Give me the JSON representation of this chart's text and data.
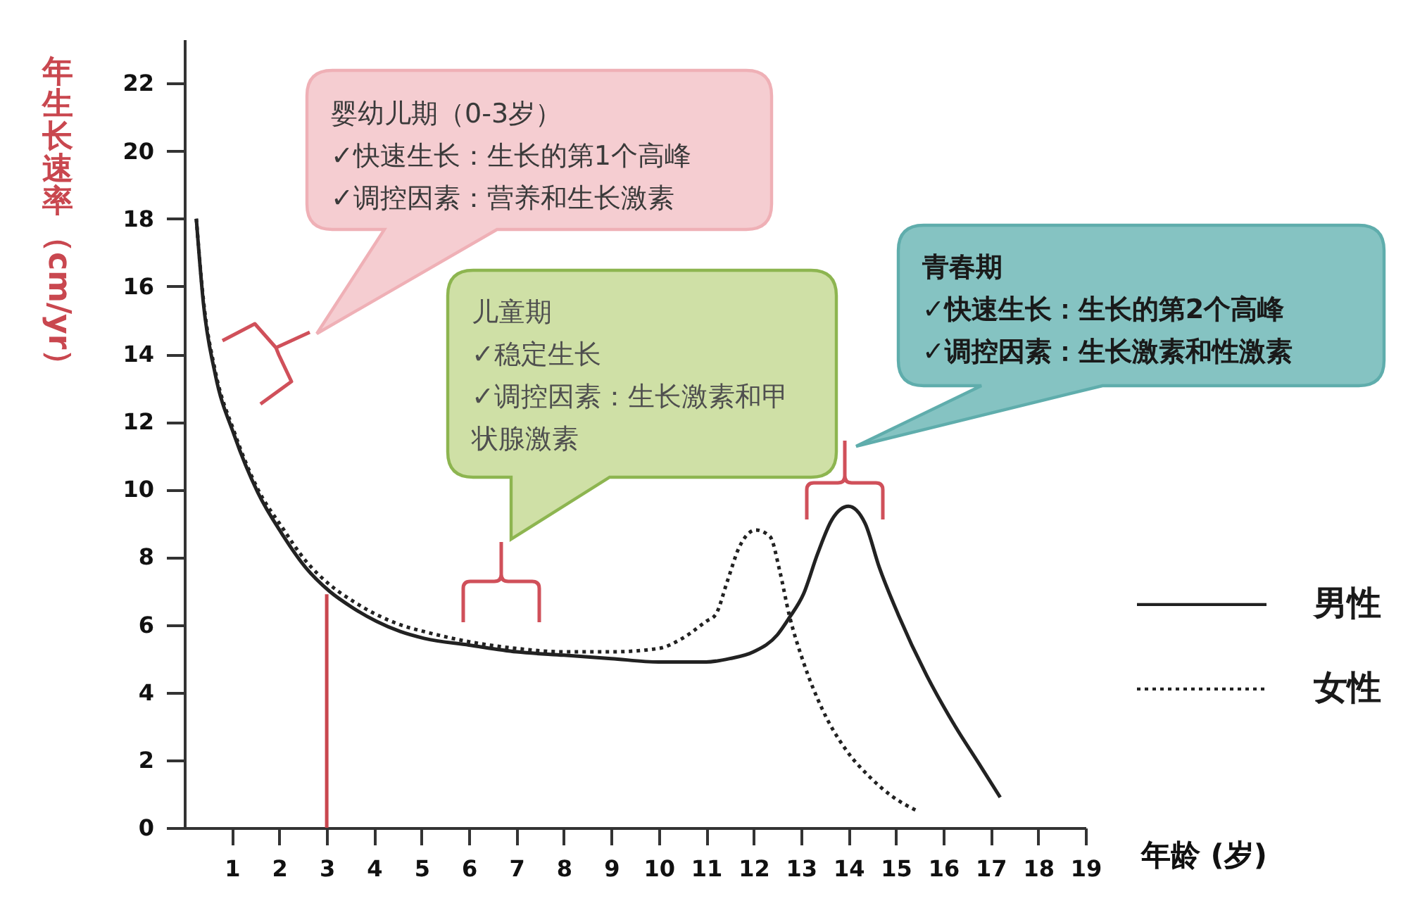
{
  "chart_data": {
    "type": "line",
    "xlabel": "年龄 (岁)",
    "ylabel": "年生长速率（cm/yr）",
    "xlim": [
      0,
      19
    ],
    "xticks": [
      1,
      2,
      3,
      4,
      5,
      6,
      7,
      8,
      9,
      10,
      11,
      12,
      13,
      14,
      15,
      16,
      17,
      18,
      19
    ],
    "ylim": [
      0,
      23.3
    ],
    "yticks": [
      0,
      2,
      4,
      6,
      8,
      10,
      12,
      14,
      16,
      18,
      20,
      22
    ],
    "legend": "right",
    "series": [
      {
        "name": "男性",
        "color": "#222222",
        "line_style": "solid",
        "x": [
          0.25,
          0.4,
          0.65,
          1.05,
          1.55,
          2.05,
          2.55,
          3.05,
          3.55,
          4.05,
          4.55,
          5.05,
          6,
          7,
          8,
          9,
          10,
          11,
          11.5,
          12,
          12.5,
          12.75,
          13.05,
          13.35,
          13.65,
          14,
          14.35,
          14.65,
          15.05,
          15.65,
          16.25,
          16.75,
          17.2
        ],
        "values": [
          18,
          15.5,
          13.4,
          11.6,
          9.9,
          8.7,
          7.7,
          7.0,
          6.5,
          6.1,
          5.8,
          5.6,
          5.4,
          5.2,
          5.1,
          5.0,
          4.9,
          4.9,
          5.0,
          5.2,
          5.7,
          6.2,
          6.9,
          8.1,
          9.1,
          9.5,
          9.0,
          7.7,
          6.3,
          4.5,
          3.0,
          1.9,
          0.9
        ]
      },
      {
        "name": "女性",
        "color": "#222222",
        "line_style": "dotted",
        "x": [
          0.25,
          0.4,
          0.65,
          1.05,
          1.55,
          2.05,
          2.55,
          3.05,
          3.55,
          4.05,
          4.55,
          5.05,
          6,
          7,
          8,
          9,
          10,
          10.5,
          11,
          11.2,
          11.45,
          11.7,
          12.05,
          12.35,
          12.55,
          12.75,
          13.05,
          13.45,
          13.95,
          14.45,
          14.95,
          15.45
        ],
        "values": [
          18,
          15.6,
          13.5,
          11.7,
          10.0,
          8.9,
          7.9,
          7.2,
          6.7,
          6.3,
          6.0,
          5.8,
          5.5,
          5.3,
          5.2,
          5.2,
          5.3,
          5.6,
          6.1,
          6.3,
          7.3,
          8.3,
          8.8,
          8.6,
          7.6,
          6.3,
          4.9,
          3.5,
          2.3,
          1.5,
          0.9,
          0.5
        ]
      },
      {
        "type": "line",
        "color": "#c9474f",
        "line_style": "solid",
        "x": [
          3,
          3
        ],
        "values": [
          0,
          6.9
        ]
      }
    ],
    "annotations": [
      "婴幼儿期（0-3岁）\n✓快速生长：生长的第1个高峰\n✓调控因素：营养和生长激素",
      "儿童期\n✓稳定生长\n✓调控因素：生长激素和甲状腺激素",
      "青春期\n✓快速生长：生长的第2个高峰\n✓调控因素：生长激素和性激素"
    ]
  }
}
